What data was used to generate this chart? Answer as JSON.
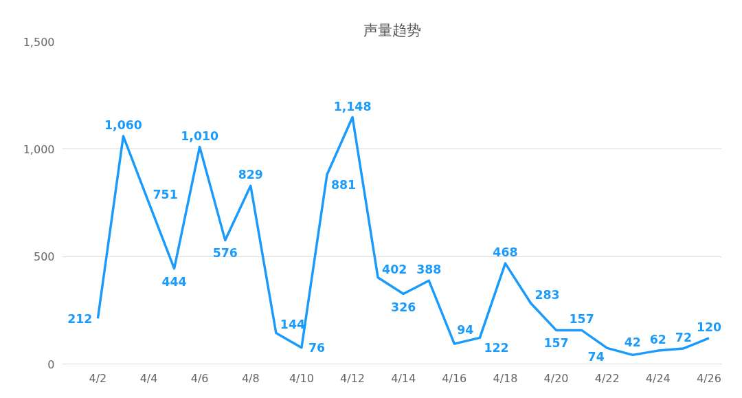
{
  "chart_data": {
    "type": "line",
    "title": "声量趋势",
    "categories": [
      "4/2",
      null,
      "4/4",
      null,
      "4/6",
      null,
      "4/8",
      null,
      "4/10",
      null,
      "4/12",
      null,
      "4/14",
      null,
      "4/16",
      null,
      "4/18",
      null,
      "4/20",
      null,
      "4/22",
      null,
      "4/24",
      null,
      "4/26"
    ],
    "series": [
      {
        "color": "#1a9bfc",
        "values": [
          212,
          1060,
          751,
          444,
          1010,
          576,
          829,
          144,
          76,
          881,
          1148,
          402,
          326,
          388,
          94,
          122,
          468,
          283,
          157,
          157,
          74,
          42,
          62,
          72,
          120
        ],
        "value_labels": [
          "212",
          "1,060",
          "751",
          "444",
          "1,010",
          "576",
          "829",
          "144",
          "76",
          "881",
          "1,148",
          "402",
          "326",
          "388",
          "94",
          "122",
          "468",
          "283",
          "157",
          "157",
          "74",
          "42",
          "62",
          "72",
          "120"
        ]
      }
    ],
    "ylim": [
      0,
      1500
    ],
    "yticks": [
      0,
      500,
      {
        "value": 1000,
        "label": "1,000"
      },
      {
        "value": 1500,
        "label": "1,500"
      }
    ],
    "grid": "y",
    "marker": "none",
    "line_style": "solid"
  }
}
